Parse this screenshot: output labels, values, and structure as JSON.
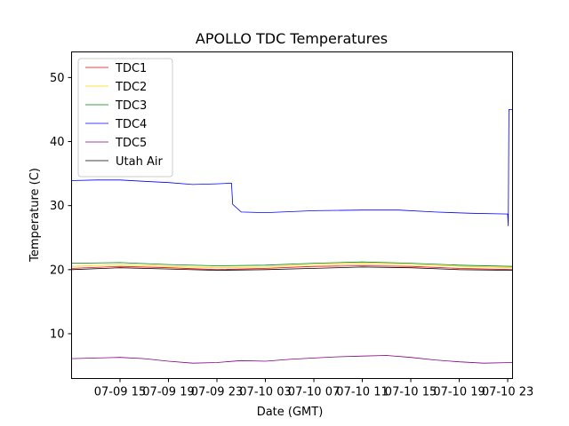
{
  "chart_data": {
    "type": "line",
    "title": "APOLLO TDC Temperatures",
    "xlabel": "Date (GMT)",
    "ylabel": "Temperature (C)",
    "x_unit": "hours since 07-09 11:00 GMT",
    "xlim": [
      0,
      36.4
    ],
    "ylim": [
      3,
      54
    ],
    "yticks": [
      10,
      20,
      30,
      40,
      50
    ],
    "xticks": [
      {
        "x": 4,
        "label": "07-09 15"
      },
      {
        "x": 8,
        "label": "07-09 19"
      },
      {
        "x": 12,
        "label": "07-09 23"
      },
      {
        "x": 16,
        "label": "07-10 03"
      },
      {
        "x": 20,
        "label": "07-10 07"
      },
      {
        "x": 24,
        "label": "07-10 11"
      },
      {
        "x": 28,
        "label": "07-10 15"
      },
      {
        "x": 32,
        "label": "07-10 19"
      },
      {
        "x": 36,
        "label": "07-10 23"
      }
    ],
    "legend_position": "top-left",
    "series": [
      {
        "name": "TDC1",
        "color": "#ff0000",
        "points": [
          [
            0,
            20.2
          ],
          [
            4,
            20.5
          ],
          [
            8,
            20.3
          ],
          [
            12,
            20.0
          ],
          [
            16,
            20.2
          ],
          [
            20,
            20.5
          ],
          [
            24,
            20.6
          ],
          [
            28,
            20.5
          ],
          [
            32,
            20.2
          ],
          [
            36.4,
            20.0
          ]
        ]
      },
      {
        "name": "TDC2",
        "color": "#ffd700",
        "points": [
          [
            0,
            20.5
          ],
          [
            4,
            20.8
          ],
          [
            8,
            20.5
          ],
          [
            12,
            20.3
          ],
          [
            16,
            20.4
          ],
          [
            20,
            20.8
          ],
          [
            24,
            20.9
          ],
          [
            28,
            20.8
          ],
          [
            32,
            20.5
          ],
          [
            36.4,
            20.3
          ]
        ]
      },
      {
        "name": "TDC3",
        "color": "#008000",
        "points": [
          [
            0,
            21.0
          ],
          [
            4,
            21.1
          ],
          [
            8,
            20.8
          ],
          [
            12,
            20.6
          ],
          [
            16,
            20.7
          ],
          [
            20,
            21.0
          ],
          [
            24,
            21.2
          ],
          [
            28,
            21.0
          ],
          [
            32,
            20.7
          ],
          [
            36.4,
            20.5
          ]
        ]
      },
      {
        "name": "TDC4",
        "color": "#0000ff",
        "points": [
          [
            0,
            33.9
          ],
          [
            2,
            34.0
          ],
          [
            4,
            34.0
          ],
          [
            6,
            33.8
          ],
          [
            8,
            33.6
          ],
          [
            10,
            33.3
          ],
          [
            12,
            33.4
          ],
          [
            13.2,
            33.5
          ],
          [
            13.3,
            30.2
          ],
          [
            14,
            29.0
          ],
          [
            16,
            28.9
          ],
          [
            20,
            29.2
          ],
          [
            24,
            29.3
          ],
          [
            27,
            29.3
          ],
          [
            30,
            29.0
          ],
          [
            33,
            28.8
          ],
          [
            36,
            28.7
          ],
          [
            36.05,
            26.8
          ],
          [
            36.1,
            45.0
          ],
          [
            36.4,
            45.0
          ]
        ]
      },
      {
        "name": "TDC5",
        "color": "#800080",
        "points": [
          [
            0,
            6.1
          ],
          [
            2,
            6.2
          ],
          [
            4,
            6.3
          ],
          [
            6,
            6.1
          ],
          [
            8,
            5.7
          ],
          [
            10,
            5.4
          ],
          [
            12,
            5.5
          ],
          [
            14,
            5.8
          ],
          [
            16,
            5.7
          ],
          [
            18,
            6.0
          ],
          [
            20,
            6.2
          ],
          [
            22,
            6.4
          ],
          [
            24,
            6.5
          ],
          [
            26,
            6.6
          ],
          [
            28,
            6.3
          ],
          [
            30,
            5.9
          ],
          [
            32,
            5.6
          ],
          [
            34,
            5.4
          ],
          [
            36.4,
            5.5
          ]
        ]
      },
      {
        "name": "Utah Air",
        "color": "#000000",
        "points": [
          [
            0,
            20.0
          ],
          [
            4,
            20.3
          ],
          [
            8,
            20.1
          ],
          [
            12,
            19.9
          ],
          [
            16,
            20.0
          ],
          [
            20,
            20.2
          ],
          [
            24,
            20.4
          ],
          [
            28,
            20.3
          ],
          [
            32,
            20.0
          ],
          [
            36.4,
            19.9
          ]
        ]
      }
    ]
  }
}
